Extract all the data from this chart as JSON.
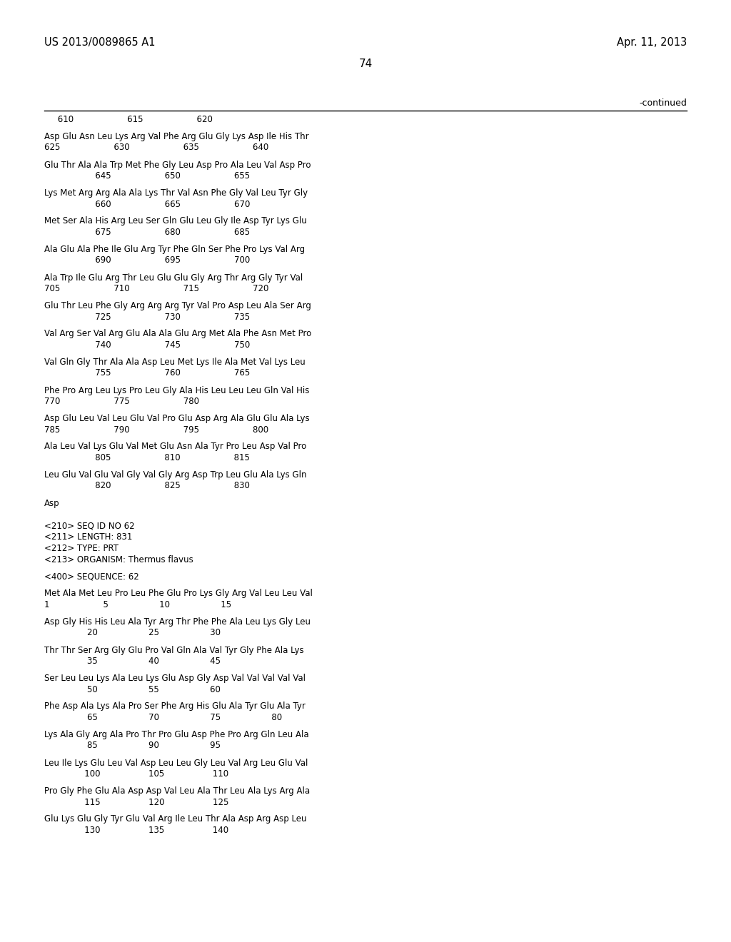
{
  "header_left": "US 2013/0089865 A1",
  "header_right": "Apr. 11, 2013",
  "page_number": "74",
  "continued_label": "-continued",
  "background_color": "#ffffff",
  "text_color": "#000000",
  "lines": [
    {
      "type": "numbering",
      "text": "     610                    615                    620"
    },
    {
      "type": "blank"
    },
    {
      "type": "seq",
      "text": "Asp Glu Asn Leu Lys Arg Val Phe Arg Glu Gly Lys Asp Ile His Thr"
    },
    {
      "type": "num",
      "text": "625                    630                    635                    640"
    },
    {
      "type": "blank"
    },
    {
      "type": "seq",
      "text": "Glu Thr Ala Ala Trp Met Phe Gly Leu Asp Pro Ala Leu Val Asp Pro"
    },
    {
      "type": "num",
      "text": "                   645                    650                    655"
    },
    {
      "type": "blank"
    },
    {
      "type": "seq",
      "text": "Lys Met Arg Arg Ala Ala Lys Thr Val Asn Phe Gly Val Leu Tyr Gly"
    },
    {
      "type": "num",
      "text": "                   660                    665                    670"
    },
    {
      "type": "blank"
    },
    {
      "type": "seq",
      "text": "Met Ser Ala His Arg Leu Ser Gln Glu Leu Gly Ile Asp Tyr Lys Glu"
    },
    {
      "type": "num",
      "text": "                   675                    680                    685"
    },
    {
      "type": "blank"
    },
    {
      "type": "seq",
      "text": "Ala Glu Ala Phe Ile Glu Arg Tyr Phe Gln Ser Phe Pro Lys Val Arg"
    },
    {
      "type": "num",
      "text": "                   690                    695                    700"
    },
    {
      "type": "blank"
    },
    {
      "type": "seq",
      "text": "Ala Trp Ile Glu Arg Thr Leu Glu Glu Gly Arg Thr Arg Gly Tyr Val"
    },
    {
      "type": "num",
      "text": "705                    710                    715                    720"
    },
    {
      "type": "blank"
    },
    {
      "type": "seq",
      "text": "Glu Thr Leu Phe Gly Arg Arg Arg Tyr Val Pro Asp Leu Ala Ser Arg"
    },
    {
      "type": "num",
      "text": "                   725                    730                    735"
    },
    {
      "type": "blank"
    },
    {
      "type": "seq",
      "text": "Val Arg Ser Val Arg Glu Ala Ala Glu Arg Met Ala Phe Asn Met Pro"
    },
    {
      "type": "num",
      "text": "                   740                    745                    750"
    },
    {
      "type": "blank"
    },
    {
      "type": "seq",
      "text": "Val Gln Gly Thr Ala Ala Asp Leu Met Lys Ile Ala Met Val Lys Leu"
    },
    {
      "type": "num",
      "text": "                   755                    760                    765"
    },
    {
      "type": "blank"
    },
    {
      "type": "seq",
      "text": "Phe Pro Arg Leu Lys Pro Leu Gly Ala His Leu Leu Leu Gln Val His"
    },
    {
      "type": "num",
      "text": "770                    775                    780"
    },
    {
      "type": "blank"
    },
    {
      "type": "seq",
      "text": "Asp Glu Leu Val Leu Glu Val Pro Glu Asp Arg Ala Glu Glu Ala Lys"
    },
    {
      "type": "num",
      "text": "785                    790                    795                    800"
    },
    {
      "type": "blank"
    },
    {
      "type": "seq",
      "text": "Ala Leu Val Lys Glu Val Met Glu Asn Ala Tyr Pro Leu Asp Val Pro"
    },
    {
      "type": "num",
      "text": "                   805                    810                    815"
    },
    {
      "type": "blank"
    },
    {
      "type": "seq",
      "text": "Leu Glu Val Glu Val Gly Val Gly Arg Asp Trp Leu Glu Ala Lys Gln"
    },
    {
      "type": "num",
      "text": "                   820                    825                    830"
    },
    {
      "type": "blank"
    },
    {
      "type": "seq",
      "text": "Asp"
    },
    {
      "type": "blank"
    },
    {
      "type": "blank"
    },
    {
      "type": "meta",
      "text": "<210> SEQ ID NO 62"
    },
    {
      "type": "meta",
      "text": "<211> LENGTH: 831"
    },
    {
      "type": "meta",
      "text": "<212> TYPE: PRT"
    },
    {
      "type": "meta",
      "text": "<213> ORGANISM: Thermus flavus"
    },
    {
      "type": "blank"
    },
    {
      "type": "meta",
      "text": "<400> SEQUENCE: 62"
    },
    {
      "type": "blank"
    },
    {
      "type": "seq",
      "text": "Met Ala Met Leu Pro Leu Phe Glu Pro Lys Gly Arg Val Leu Leu Val"
    },
    {
      "type": "num",
      "text": "1                    5                   10                   15"
    },
    {
      "type": "blank"
    },
    {
      "type": "seq",
      "text": "Asp Gly His His Leu Ala Tyr Arg Thr Phe Phe Ala Leu Lys Gly Leu"
    },
    {
      "type": "num",
      "text": "                20                   25                   30"
    },
    {
      "type": "blank"
    },
    {
      "type": "seq",
      "text": "Thr Thr Ser Arg Gly Glu Pro Val Gln Ala Val Tyr Gly Phe Ala Lys"
    },
    {
      "type": "num",
      "text": "                35                   40                   45"
    },
    {
      "type": "blank"
    },
    {
      "type": "seq",
      "text": "Ser Leu Leu Lys Ala Leu Lys Glu Asp Gly Asp Val Val Val Val Val"
    },
    {
      "type": "num",
      "text": "                50                   55                   60"
    },
    {
      "type": "blank"
    },
    {
      "type": "seq",
      "text": "Phe Asp Ala Lys Ala Pro Ser Phe Arg His Glu Ala Tyr Glu Ala Tyr"
    },
    {
      "type": "num",
      "text": "                65                   70                   75                   80"
    },
    {
      "type": "blank"
    },
    {
      "type": "seq",
      "text": "Lys Ala Gly Arg Ala Pro Thr Pro Glu Asp Phe Pro Arg Gln Leu Ala"
    },
    {
      "type": "num",
      "text": "                85                   90                   95"
    },
    {
      "type": "blank"
    },
    {
      "type": "seq",
      "text": "Leu Ile Lys Glu Leu Val Asp Leu Leu Gly Leu Val Arg Leu Glu Val"
    },
    {
      "type": "num",
      "text": "               100                  105                  110"
    },
    {
      "type": "blank"
    },
    {
      "type": "seq",
      "text": "Pro Gly Phe Glu Ala Asp Asp Val Leu Ala Thr Leu Ala Lys Arg Ala"
    },
    {
      "type": "num",
      "text": "               115                  120                  125"
    },
    {
      "type": "blank"
    },
    {
      "type": "seq",
      "text": "Glu Lys Glu Gly Tyr Glu Val Arg Ile Leu Thr Ala Asp Arg Asp Leu"
    },
    {
      "type": "num",
      "text": "               130                  135                  140"
    }
  ]
}
